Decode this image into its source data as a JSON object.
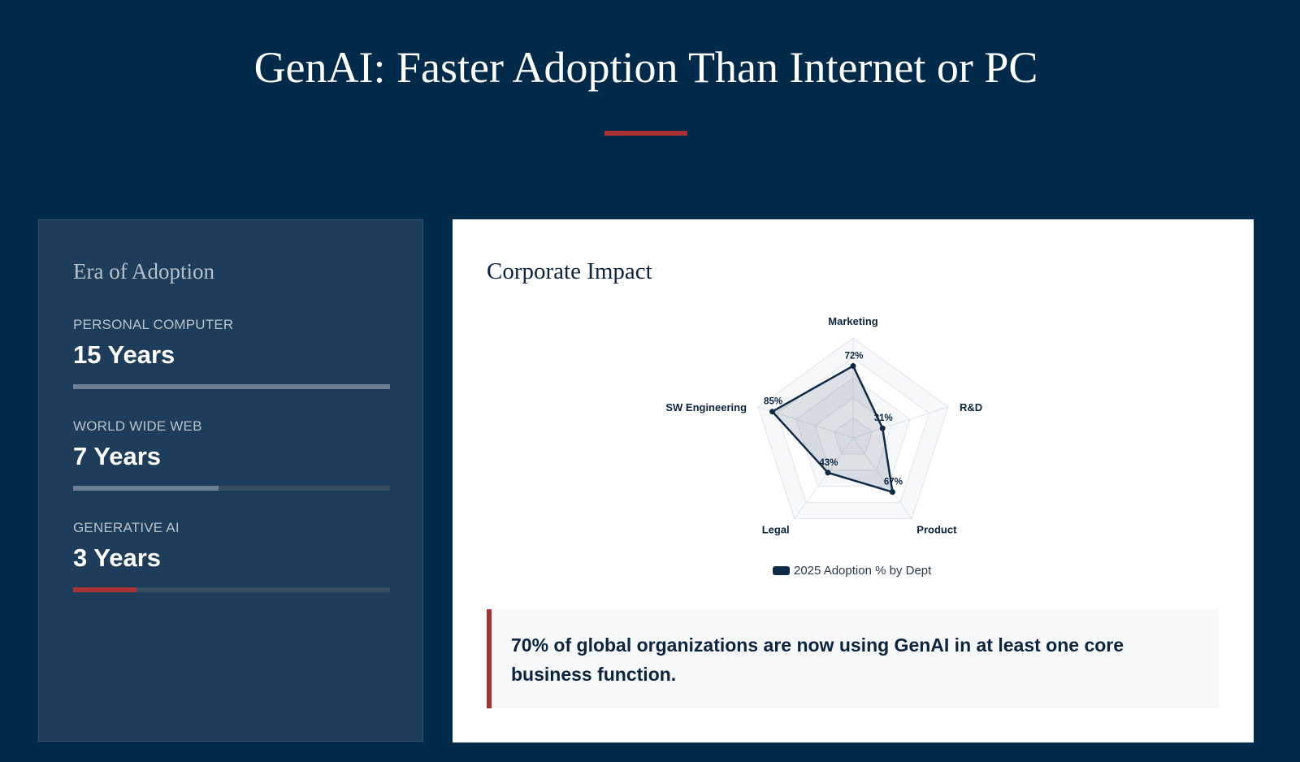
{
  "header": {
    "title": "GenAI: Faster Adoption Than Internet or PC"
  },
  "colors": {
    "accent": "#a83234",
    "background": "#002a49",
    "series": "#0e2a47",
    "bar_muted": "#6c7f94"
  },
  "era_card": {
    "title": "Era of Adoption",
    "items": [
      {
        "label": "PERSONAL COMPUTER",
        "value": "15 Years",
        "fill": 1.0
      },
      {
        "label": "WORLD WIDE WEB",
        "value": "7 Years",
        "fill": 0.46
      },
      {
        "label": "GENERATIVE AI",
        "value": "3 Years",
        "fill": 0.2
      }
    ]
  },
  "impact_card": {
    "title": "Corporate Impact",
    "callout": "70% of global organizations are now using GenAI in at least one core business function."
  },
  "chart_data": {
    "type": "radar",
    "categories": [
      "Marketing",
      "R&D",
      "Product",
      "Legal",
      "SW Engineering"
    ],
    "series": [
      {
        "name": "2025 Adoption % by Dept",
        "values": [
          72,
          31,
          67,
          43,
          85
        ]
      }
    ],
    "value_labels": [
      "72%",
      "31%",
      "67%",
      "43%",
      "85%"
    ],
    "rmax": 100,
    "legend_position": "bottom",
    "grid": true
  }
}
